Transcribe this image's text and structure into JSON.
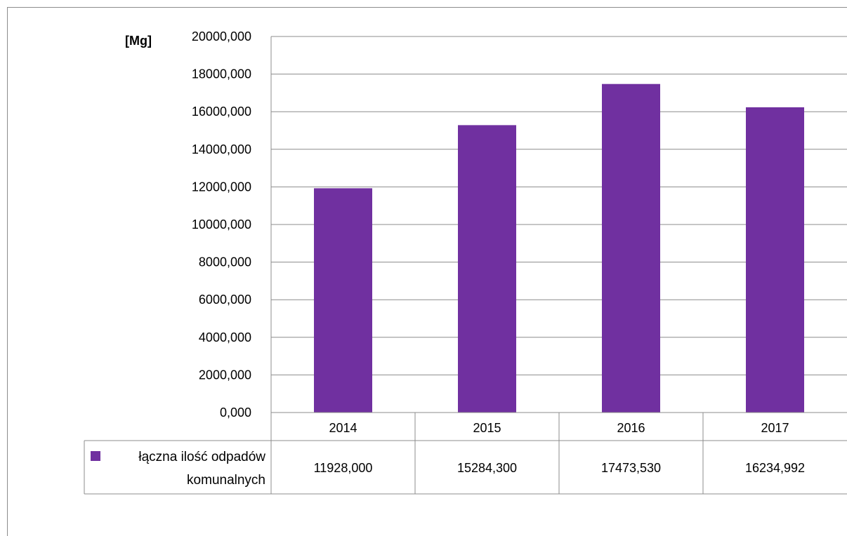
{
  "chart_data": {
    "type": "bar",
    "y_unit_label": "[Mg]",
    "categories": [
      "2014",
      "2015",
      "2016",
      "2017"
    ],
    "series": [
      {
        "name": "łączna ilość odpadów komunalnych",
        "name_lines": [
          "łączna ilość odpadów",
          "komunalnych"
        ],
        "values": [
          11928.0,
          15284.3,
          17473.53,
          16234.992
        ],
        "value_labels": [
          "11928,000",
          "15284,300",
          "17473,530",
          "16234,992"
        ],
        "color": "#7030a0"
      }
    ],
    "ylim": [
      0,
      20000
    ],
    "yticks": [
      0,
      2000,
      4000,
      6000,
      8000,
      10000,
      12000,
      14000,
      16000,
      18000,
      20000
    ],
    "ytick_labels": [
      "0,000",
      "2000,000",
      "4000,000",
      "6000,000",
      "8000,000",
      "10000,000",
      "12000,000",
      "14000,000",
      "16000,000",
      "18000,000",
      "20000,000"
    ],
    "grid": true,
    "data_table": true,
    "legend_placement": "data-table-left"
  }
}
